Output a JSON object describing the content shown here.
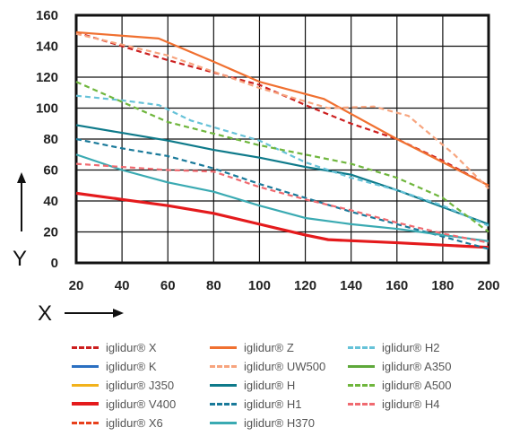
{
  "chart_data": {
    "type": "line",
    "xlabel": "X",
    "ylabel": "Y",
    "xlim": [
      20,
      200
    ],
    "ylim": [
      0,
      160
    ],
    "x_ticks": [
      20,
      40,
      60,
      80,
      100,
      120,
      140,
      160,
      180,
      200
    ],
    "y_ticks": [
      0,
      20,
      40,
      60,
      80,
      100,
      120,
      140,
      160
    ],
    "grid": true,
    "legend_position": "bottom",
    "series": [
      {
        "name": "iglidur® X",
        "color": "#cc1f1f",
        "dash": "dashed",
        "x": [
          20,
          60,
          100,
          120,
          140,
          160,
          180,
          200
        ],
        "y": [
          149,
          131,
          115,
          102,
          90,
          80,
          66,
          50
        ]
      },
      {
        "name": "iglidur® K",
        "color": "#2a6fc1",
        "dash": "solid",
        "x": [],
        "y": []
      },
      {
        "name": "iglidur® J350",
        "color": "#f2b21b",
        "dash": "solid",
        "x": [],
        "y": []
      },
      {
        "name": "iglidur® V400",
        "color": "#e41a1c",
        "dash": "solid",
        "x": [
          20,
          40,
          60,
          80,
          100,
          120,
          130,
          160,
          200
        ],
        "y": [
          45,
          41,
          37,
          32,
          25,
          18,
          15,
          13,
          10
        ]
      },
      {
        "name": "iglidur® X6",
        "color": "#e8401c",
        "dash": "dashed",
        "x": [],
        "y": []
      },
      {
        "name": "iglidur® Z",
        "color": "#f07030",
        "dash": "solid",
        "x": [
          20,
          56,
          80,
          100,
          128,
          160,
          200
        ],
        "y": [
          149,
          145,
          130,
          117,
          106,
          80,
          50
        ]
      },
      {
        "name": "iglidur® UW500",
        "color": "#f7a47e",
        "dash": "dashed",
        "x": [
          20,
          60,
          100,
          130,
          150,
          165,
          185,
          200
        ],
        "y": [
          148,
          134,
          113,
          100,
          101,
          95,
          70,
          48
        ]
      },
      {
        "name": "iglidur® H",
        "color": "#0e7a8a",
        "dash": "solid",
        "x": [
          20,
          40,
          60,
          80,
          100,
          120,
          140,
          160,
          180,
          200
        ],
        "y": [
          89,
          84,
          79,
          73,
          68,
          62,
          57,
          47,
          36,
          25
        ]
      },
      {
        "name": "iglidur® H1",
        "color": "#1a7a9a",
        "dash": "dashed",
        "x": [
          20,
          40,
          60,
          80,
          100,
          120,
          140,
          160,
          180,
          200
        ],
        "y": [
          80,
          74,
          69,
          61,
          51,
          42,
          33,
          25,
          17,
          9
        ]
      },
      {
        "name": "iglidur® H370",
        "color": "#3aaab2",
        "dash": "solid",
        "x": [
          20,
          40,
          60,
          80,
          100,
          120,
          140,
          160,
          200
        ],
        "y": [
          70,
          60,
          52,
          46,
          37,
          29,
          25,
          22,
          14
        ]
      },
      {
        "name": "iglidur® H2",
        "color": "#66c2d8",
        "dash": "dashed",
        "x": [
          20,
          40,
          56,
          70,
          100,
          120,
          140,
          160,
          180,
          200
        ],
        "y": [
          108,
          105,
          102,
          92,
          79,
          65,
          55,
          47,
          37,
          24
        ]
      },
      {
        "name": "iglidur® A350",
        "color": "#5ea83a",
        "dash": "solid",
        "x": [],
        "y": []
      },
      {
        "name": "iglidur® A500",
        "color": "#6fb63d",
        "dash": "dashed",
        "x": [
          20,
          60,
          100,
          140,
          160,
          180,
          200
        ],
        "y": [
          117,
          91,
          76,
          64,
          55,
          42,
          20
        ]
      },
      {
        "name": "iglidur® H4",
        "color": "#f06a70",
        "dash": "dashed",
        "x": [
          20,
          40,
          60,
          80,
          100,
          120,
          140,
          160,
          180,
          200
        ],
        "y": [
          64,
          62,
          60,
          59,
          49,
          41,
          34,
          26,
          19,
          13
        ]
      }
    ]
  }
}
